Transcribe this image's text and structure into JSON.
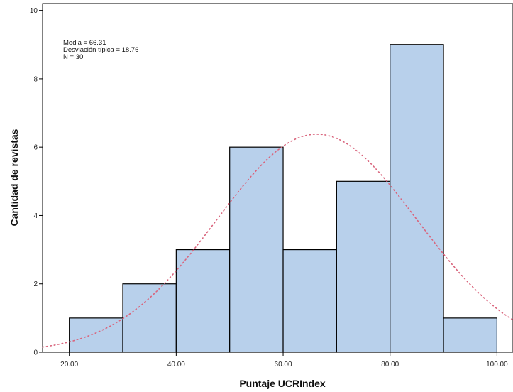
{
  "chart_data": {
    "type": "bar",
    "subtype": "histogram",
    "bins": [
      {
        "from": 20,
        "to": 30,
        "count": 1
      },
      {
        "from": 30,
        "to": 40,
        "count": 2
      },
      {
        "from": 40,
        "to": 50,
        "count": 3
      },
      {
        "from": 50,
        "to": 60,
        "count": 6
      },
      {
        "from": 60,
        "to": 70,
        "count": 3
      },
      {
        "from": 70,
        "to": 80,
        "count": 5
      },
      {
        "from": 80,
        "to": 90,
        "count": 9
      },
      {
        "from": 90,
        "to": 100,
        "count": 1
      }
    ],
    "xlabel": "Puntaje UCRIndex",
    "ylabel": "Cantidad de revistas",
    "xlim": [
      15,
      103
    ],
    "ylim": [
      0,
      10.2
    ],
    "x_ticks": [
      20,
      40,
      60,
      80,
      100
    ],
    "x_tick_labels": [
      "20.00",
      "40.00",
      "60.00",
      "80.00",
      "100.00"
    ],
    "y_ticks": [
      0,
      2,
      4,
      6,
      8,
      10
    ],
    "y_tick_labels": [
      "0",
      "2",
      "4",
      "6",
      "8",
      "10"
    ],
    "bar_color": "#b8d0eb",
    "bar_edge_color": "#000000",
    "normal_curve": {
      "mean": 66.31,
      "sd": 18.76,
      "n": 30,
      "bin_width": 10,
      "color": "#d9657d",
      "style": "dotted"
    },
    "stats_text": [
      "Media = 66.31",
      "Desviación típica = 18.76",
      "N = 30"
    ],
    "grid": false
  }
}
